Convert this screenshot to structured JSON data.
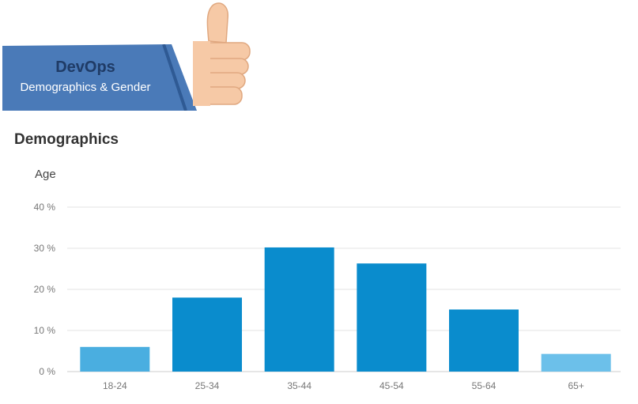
{
  "banner": {
    "title": "DevOps",
    "subtitle": "Demographics & Gender",
    "sleeve_color": "#4a7ab8",
    "thumb_icon": "thumbs-up-icon"
  },
  "section": {
    "title": "Demographics"
  },
  "chart_data": {
    "type": "bar",
    "title": "",
    "ylabel": "Age",
    "xlabel": "",
    "categories": [
      "18-24",
      "25-34",
      "35-44",
      "45-54",
      "55-64",
      "65+"
    ],
    "values": [
      6,
      18,
      30.2,
      26.3,
      15.1,
      4.3
    ],
    "ylim": [
      0,
      40
    ],
    "yticks": [
      0,
      10,
      20,
      30,
      40
    ],
    "ytick_labels": [
      "0 %",
      "10 %",
      "20 %",
      "30 %",
      "40 %"
    ],
    "grid": true,
    "colors": [
      "#4aaee0",
      "#0a8ccd",
      "#0a8ccd",
      "#0a8ccd",
      "#0a8ccd",
      "#6cc0ea"
    ]
  }
}
